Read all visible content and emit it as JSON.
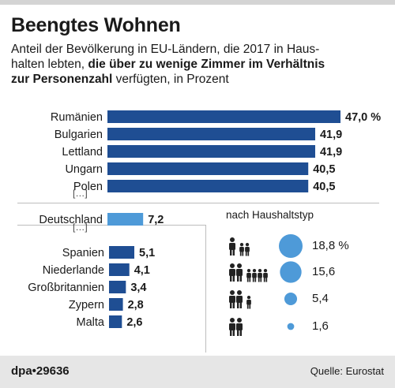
{
  "title": "Beengtes Wohnen",
  "subtitle": {
    "part1": "Anteil der Bevölkerung in EU-Ländern, die 2017 in Haus-",
    "part2": "halten lebten, ",
    "bold1": "die über zu wenige Zimmer im Verhältnis",
    "bold2": "zur Personenzahl",
    "part3": " verfügten, in Prozent"
  },
  "ellipsis": "[…]",
  "colors": {
    "bar": "#1f4e93",
    "highlight": "#4e9ad8",
    "circle": "#4e9ad8",
    "icon": "#222222"
  },
  "chart_data": [
    {
      "type": "bar",
      "orientation": "horizontal",
      "categories": [
        "Rumänien",
        "Bulgarien",
        "Lettland",
        "Ungarn",
        "Polen",
        "Deutschland",
        "Spanien",
        "Niederlande",
        "Großbritannien",
        "Zypern",
        "Malta"
      ],
      "values": [
        47.0,
        41.9,
        41.9,
        40.5,
        40.5,
        7.2,
        5.1,
        4.1,
        3.4,
        2.8,
        2.6
      ],
      "labels": [
        "47,0 %",
        "41,9",
        "41,9",
        "40,5",
        "40,5",
        "7,2",
        "5,1",
        "4,1",
        "3,4",
        "2,8",
        "2,6"
      ],
      "highlight": "Deutschland"
    },
    {
      "type": "bubble",
      "title": "nach Haushaltstyp",
      "categories": [
        "Erwachsene mit Kindern (groß)",
        "Erwachsene mit vielen Kindern",
        "Erwachsene mit Kindern",
        "Zwei Erwachsene"
      ],
      "values": [
        18.8,
        15.6,
        5.4,
        1.6
      ],
      "labels": [
        "18,8 %",
        "15,6",
        "5,4",
        "1,6"
      ],
      "icons": [
        "adult-one-child-two-icon",
        "adult-two-child-four-icon",
        "adult-two-child-one-icon",
        "adult-two-icon"
      ]
    }
  ],
  "footer": {
    "brand": "dpa•29636",
    "source": "Quelle: Eurostat"
  }
}
